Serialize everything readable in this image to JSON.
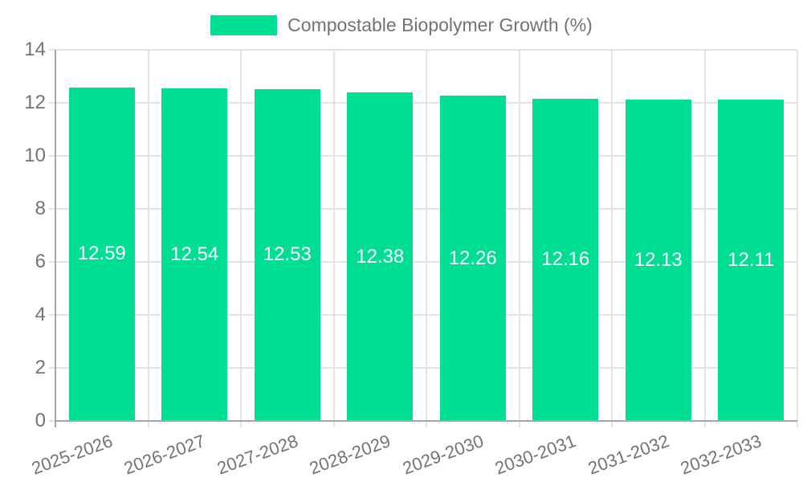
{
  "legend": {
    "label": "Compostable Biopolymer Growth (%)"
  },
  "colors": {
    "bar": "#00DE96",
    "grid": "#e3e3e3",
    "axis": "#a6a6a6",
    "text": "#737373",
    "bar_label": "#ffffff",
    "background": "#ffffff"
  },
  "chart_data": {
    "type": "bar",
    "title": "",
    "legend_entries": [
      "Compostable Biopolymer Growth (%)"
    ],
    "legend_position": "top-center",
    "categories": [
      "2025-2026",
      "2026-2027",
      "2027-2028",
      "2028-2029",
      "2029-2030",
      "2030-2031",
      "2031-2032",
      "2032-2033"
    ],
    "values": [
      12.59,
      12.54,
      12.53,
      12.38,
      12.26,
      12.16,
      12.13,
      12.11
    ],
    "bar_labels": [
      "12.59",
      "12.54",
      "12.53",
      "12.38",
      "12.26",
      "12.16",
      "12.13",
      "12.11"
    ],
    "xlabel": "",
    "ylabel": "",
    "ylim": [
      0,
      14
    ],
    "yticks": [
      0,
      2,
      4,
      6,
      8,
      10,
      12,
      14
    ],
    "grid": true,
    "x_label_rotation_deg": -20
  }
}
